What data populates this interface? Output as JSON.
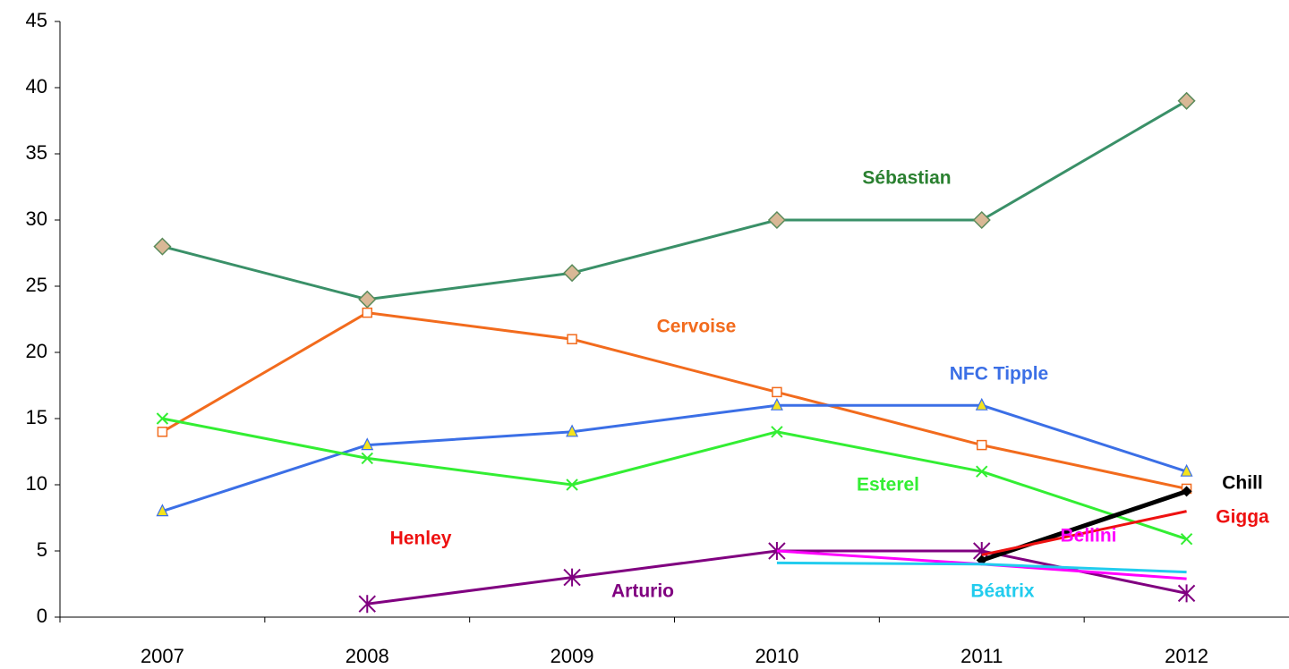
{
  "chart_data": {
    "type": "line",
    "categories": [
      "2007",
      "2008",
      "2009",
      "2010",
      "2011",
      "2012"
    ],
    "ylim": [
      0,
      45
    ],
    "yticks": [
      0,
      5,
      10,
      15,
      20,
      25,
      30,
      35,
      40,
      45
    ],
    "grid": false,
    "series": [
      {
        "name": "Sébastian",
        "color": "#3a9068",
        "label_color": "#2a8030",
        "marker": "diamond",
        "values": [
          28,
          24,
          26,
          30,
          30,
          39
        ]
      },
      {
        "name": "Cervoise",
        "color": "#f26b1d",
        "label_color": "#f26b1d",
        "marker": "square",
        "values": [
          14,
          23,
          21,
          17,
          13,
          9.7
        ]
      },
      {
        "name": "NFC Tipple",
        "color": "#3b6fe6",
        "label_color": "#3b6fe6",
        "marker": "triangle",
        "values": [
          8,
          13,
          14,
          16,
          16,
          11
        ]
      },
      {
        "name": "Esterel",
        "color": "#33ee33",
        "label_color": "#33ee33",
        "marker": "x",
        "values": [
          15,
          12,
          10,
          14,
          11,
          5.9
        ]
      },
      {
        "name": "Henley",
        "color": "#ee1111",
        "label_color": "#ee1111",
        "marker": "none",
        "values": [
          null,
          null,
          null,
          null,
          null,
          null
        ]
      },
      {
        "name": "Arturio",
        "color": "#800080",
        "label_color": "#800080",
        "marker": "asterisk",
        "values": [
          null,
          1,
          3,
          5,
          5,
          1.8
        ]
      },
      {
        "name": "Chill",
        "color": "#000000",
        "label_color": "#000000",
        "marker": "diamond-small",
        "values": [
          null,
          null,
          null,
          null,
          4.3,
          9.5
        ]
      },
      {
        "name": "Gigga",
        "color": "#ee1111",
        "label_color": "#ee1111",
        "marker": "none",
        "values": [
          null,
          null,
          null,
          null,
          4.7,
          8
        ]
      },
      {
        "name": "Bellini",
        "color": "#ff00ff",
        "label_color": "#ff00ff",
        "marker": "none",
        "values": [
          null,
          null,
          null,
          5,
          4,
          2.9
        ]
      },
      {
        "name": "Béatrix",
        "color": "#22ccee",
        "label_color": "#22ccee",
        "marker": "none",
        "values": [
          null,
          null,
          null,
          4.1,
          4,
          3.4
        ]
      }
    ]
  }
}
